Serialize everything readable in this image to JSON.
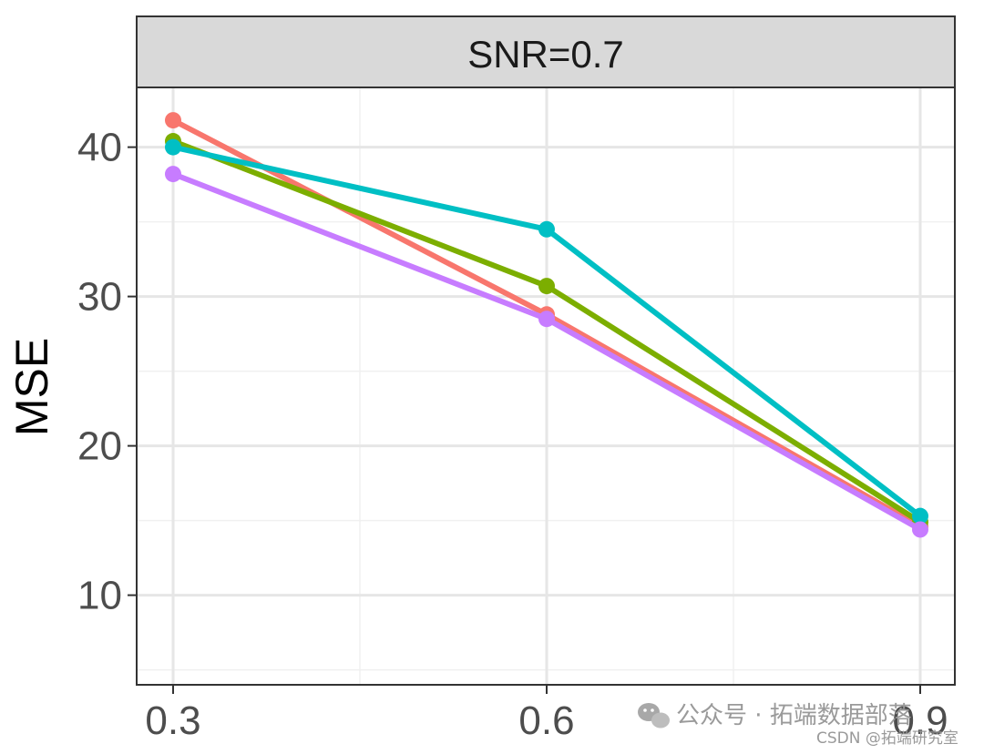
{
  "chart_data": {
    "type": "line",
    "panel_label": "SNR=0.7",
    "ylabel": "MSE",
    "x": [
      0.3,
      0.6,
      0.9
    ],
    "x_tick_labels": [
      "0.3",
      "0.6",
      "0.9"
    ],
    "ylim": [
      4,
      44
    ],
    "y_ticks": [
      10,
      20,
      30,
      40
    ],
    "y_tick_labels": [
      "10",
      "20",
      "30",
      "40"
    ],
    "grid": true,
    "series": [
      {
        "color": "#F8766D",
        "values": [
          41.8,
          28.8,
          14.6
        ]
      },
      {
        "color": "#7CAE00",
        "values": [
          40.4,
          30.7,
          14.9
        ]
      },
      {
        "color": "#00BFC4",
        "values": [
          40.0,
          34.5,
          15.3
        ]
      },
      {
        "color": "#C77CFF",
        "values": [
          38.2,
          28.5,
          14.4
        ]
      }
    ]
  },
  "watermark": {
    "line1": "公众号 · 拓端数据部落",
    "line2": "CSDN @拓端研究室",
    "icon": "wechat-icon"
  }
}
